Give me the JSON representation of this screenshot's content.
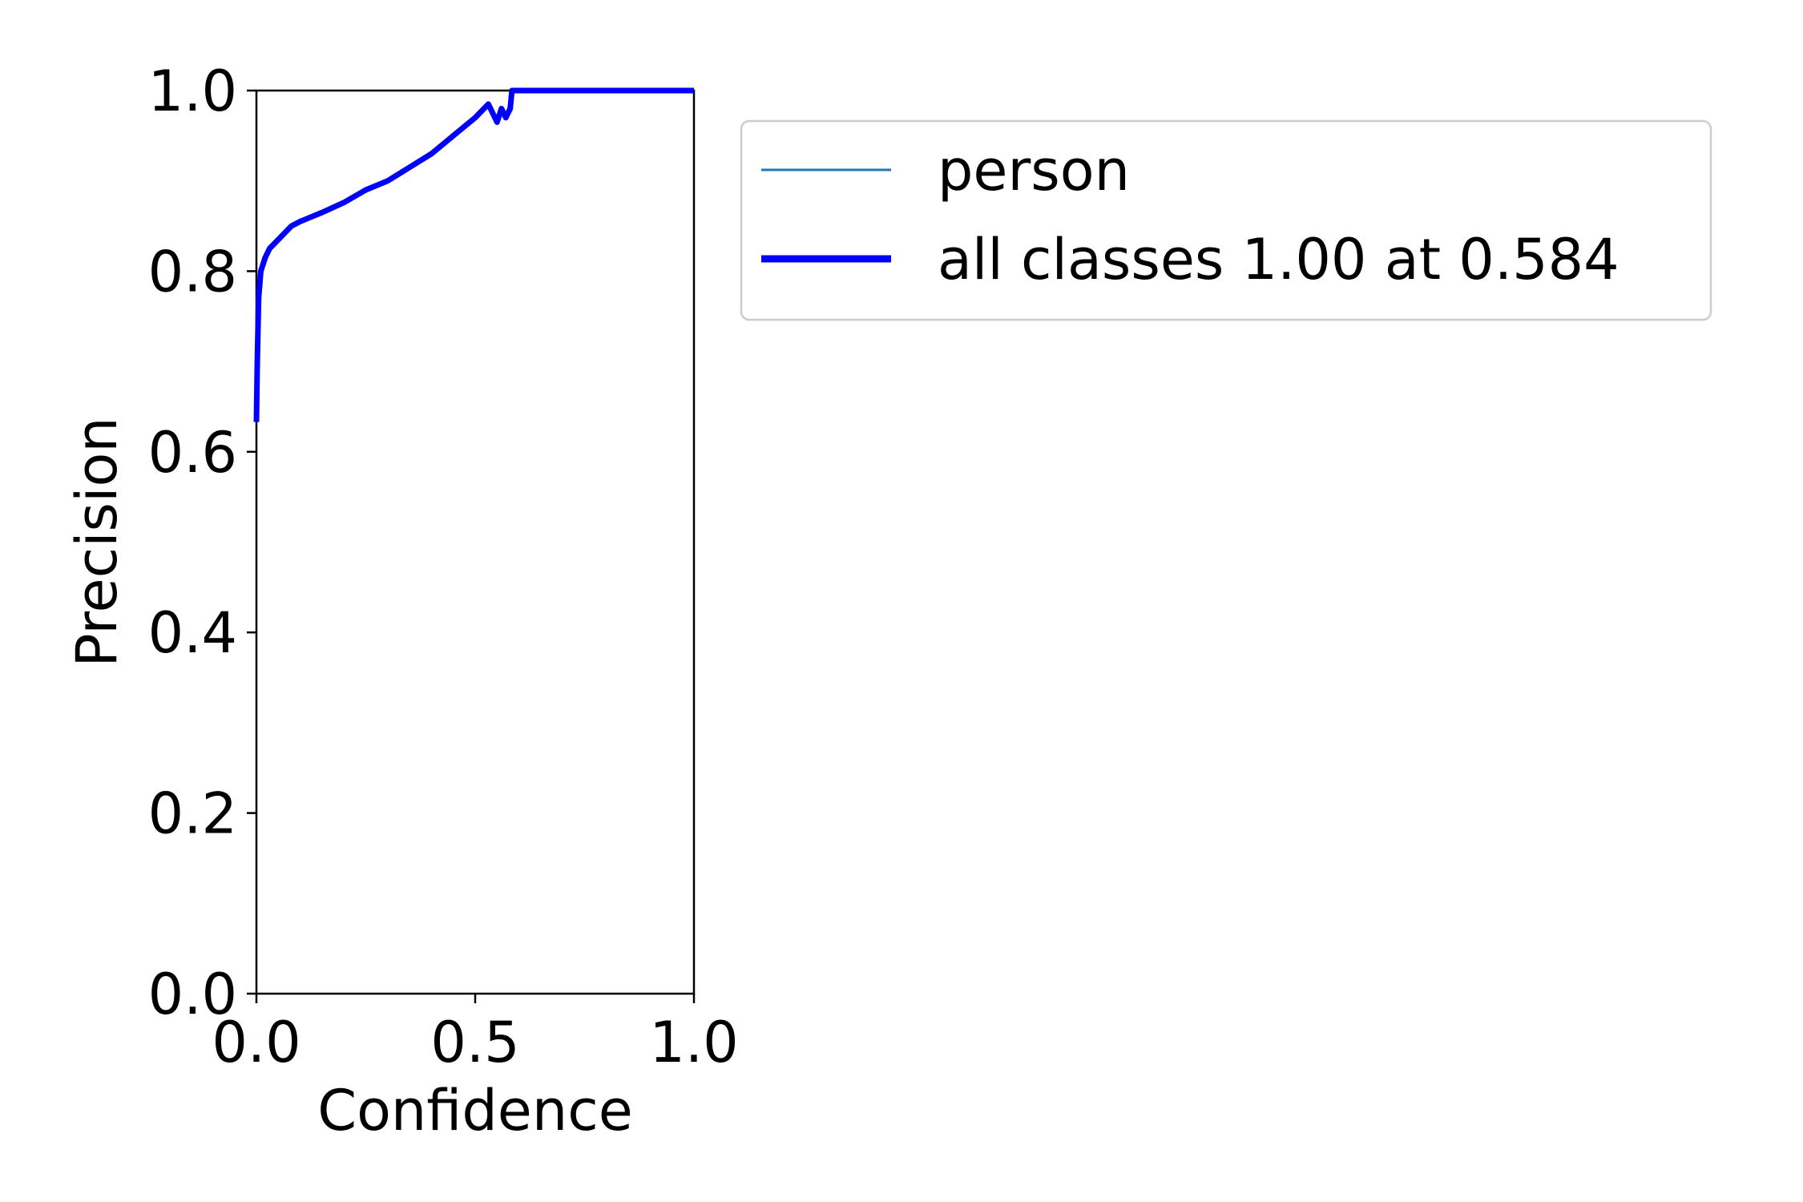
{
  "chart_data": {
    "type": "line",
    "title": "",
    "xlabel": "Confidence",
    "ylabel": "Precision",
    "xlim": [
      0,
      1
    ],
    "ylim": [
      0,
      1
    ],
    "xticks": [
      "0.0",
      "0.5",
      "1.0"
    ],
    "yticks": [
      "0.0",
      "0.2",
      "0.4",
      "0.6",
      "0.8",
      "1.0"
    ],
    "grid": false,
    "legend_placement": "outside-right",
    "series": [
      {
        "name": "person",
        "color": "#1f77b4",
        "x": [
          0.0,
          0.002,
          0.005,
          0.01,
          0.02,
          0.03,
          0.05,
          0.08,
          0.1,
          0.15,
          0.2,
          0.25,
          0.3,
          0.35,
          0.4,
          0.45,
          0.5,
          0.53,
          0.55,
          0.56,
          0.57,
          0.58,
          0.584,
          0.6,
          0.7,
          0.8,
          0.9,
          1.0
        ],
        "y": [
          0.633,
          0.7,
          0.77,
          0.8,
          0.815,
          0.825,
          0.835,
          0.85,
          0.855,
          0.865,
          0.876,
          0.89,
          0.9,
          0.915,
          0.93,
          0.95,
          0.97,
          0.985,
          0.965,
          0.98,
          0.97,
          0.98,
          1.0,
          1.0,
          1.0,
          1.0,
          1.0,
          1.0
        ]
      },
      {
        "name": "all classes 1.00 at 0.584",
        "color": "#0000ff",
        "x": [
          0.0,
          0.002,
          0.005,
          0.01,
          0.02,
          0.03,
          0.05,
          0.08,
          0.1,
          0.15,
          0.2,
          0.25,
          0.3,
          0.35,
          0.4,
          0.45,
          0.5,
          0.53,
          0.55,
          0.56,
          0.57,
          0.58,
          0.584,
          0.6,
          0.7,
          0.8,
          0.9,
          1.0
        ],
        "y": [
          0.633,
          0.7,
          0.77,
          0.8,
          0.815,
          0.825,
          0.835,
          0.85,
          0.855,
          0.865,
          0.876,
          0.89,
          0.9,
          0.915,
          0.93,
          0.95,
          0.97,
          0.985,
          0.965,
          0.98,
          0.97,
          0.98,
          1.0,
          1.0,
          1.0,
          1.0,
          1.0,
          1.0
        ]
      }
    ]
  }
}
